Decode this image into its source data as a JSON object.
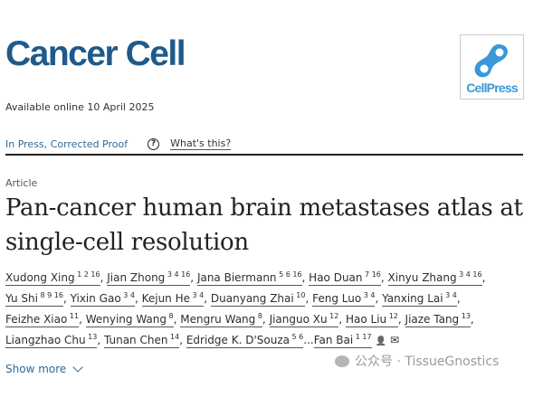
{
  "journal": "Cancer Cell",
  "logo": {
    "text": "CellPress",
    "color": "#3a98d8"
  },
  "available": "Available online 10 April 2025",
  "status": {
    "press": "In Press, Corrected Proof",
    "help_icon": "question-circle-icon",
    "whats_this": "What's this?"
  },
  "article_type": "Article",
  "title": "Pan-cancer human brain metastases atlas at single-cell resolution",
  "author_rows": [
    [
      {
        "name": "Xudong Xing",
        "aff": "1 2 16"
      },
      {
        "name": "Jian Zhong",
        "aff": "3 4 16"
      },
      {
        "name": "Jana Biermann",
        "aff": "5 6 16"
      },
      {
        "name": "Hao Duan",
        "aff": "7 16"
      },
      {
        "name": "Xinyu Zhang",
        "aff": "3 4 16"
      }
    ],
    [
      {
        "name": "Yu Shi",
        "aff": "8 9 16"
      },
      {
        "name": "Yixin Gao",
        "aff": "3 4"
      },
      {
        "name": "Kejun He",
        "aff": "3 4"
      },
      {
        "name": "Duanyang Zhai",
        "aff": "10"
      },
      {
        "name": "Feng Luo",
        "aff": "3 4"
      },
      {
        "name": "Yanxing Lai",
        "aff": "3 4"
      }
    ],
    [
      {
        "name": "Feizhe Xiao",
        "aff": "11"
      },
      {
        "name": "Wenying Wang",
        "aff": "8"
      },
      {
        "name": "Mengru Wang",
        "aff": "8"
      },
      {
        "name": "Jianguo Xu",
        "aff": "12"
      },
      {
        "name": "Hao Liu",
        "aff": "12"
      },
      {
        "name": "Jiaze Tang",
        "aff": "13"
      }
    ],
    [
      {
        "name": "Liangzhao Chu",
        "aff": "13"
      },
      {
        "name": "Tunan Chen",
        "aff": "14"
      },
      {
        "name": "Edridge K. D'Souza",
        "aff": "5 6"
      },
      {
        "name": "Fan Bai",
        "aff": "1 17"
      }
    ]
  ],
  "ellipsis": "...",
  "show_more": "Show more",
  "watermark": "公众号 · TissueGnostics",
  "accent": "#1f5a8a"
}
